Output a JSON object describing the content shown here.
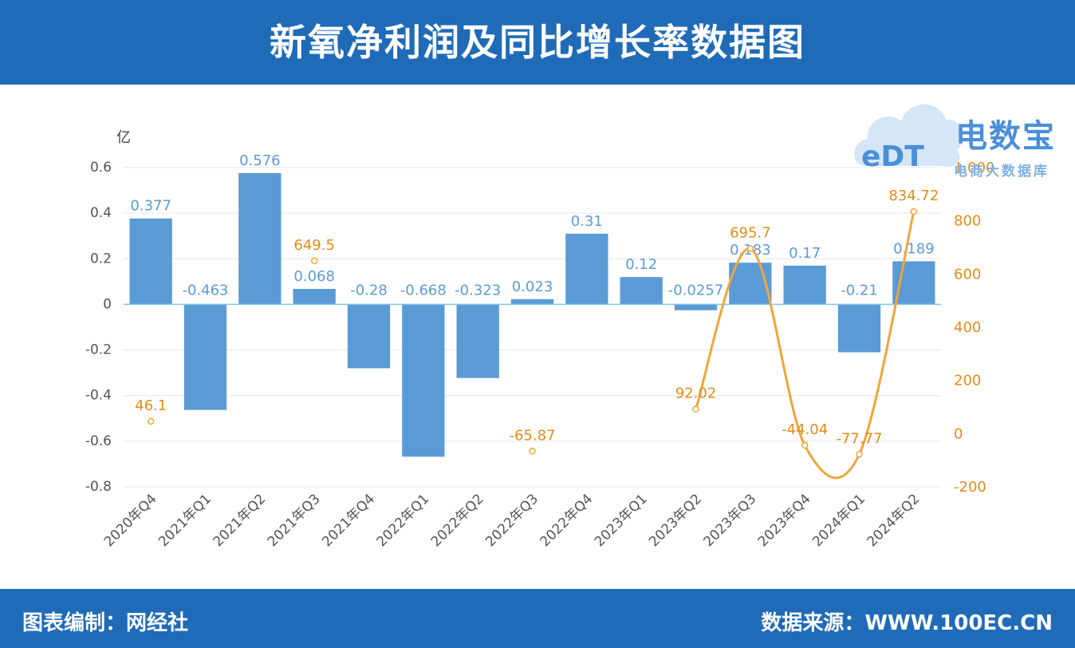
{
  "header": {
    "title": "新氧净利润及同比增长率数据图"
  },
  "footer": {
    "left": "图表编制：网经社",
    "right": "数据来源：WWW.100EC.CN"
  },
  "logo": {
    "brand": "电数宝",
    "sub": "电商大数据库",
    "mark": "eDT"
  },
  "colors": {
    "banner": "#1f6bb8",
    "bar": "#5b9bd5",
    "line": "#f0a53a",
    "label_blue": "#5b9bd5",
    "label_orange": "#e38c16"
  },
  "chart_data": {
    "type": "bar",
    "categories": [
      "2020年Q4",
      "2021年Q1",
      "2021年Q2",
      "2021年Q3",
      "2021年Q4",
      "2022年Q1",
      "2022年Q2",
      "2022年Q3",
      "2022年Q4",
      "2023年Q1",
      "2023年Q2",
      "2023年Q3",
      "2023年Q4",
      "2024年Q1",
      "2024年Q2"
    ],
    "ylabel": "亿",
    "ylim": [
      -0.8,
      0.6
    ],
    "y_ticks": [
      "0.6",
      "0.4",
      "0.2",
      "0",
      "-0.2",
      "-0.4",
      "-0.6",
      "-0.8"
    ],
    "y2lim": [
      -200,
      1000
    ],
    "y2_ticks": [
      "1,000",
      "800",
      "600",
      "400",
      "200",
      "0",
      "-200"
    ],
    "series": [
      {
        "type": "bar",
        "values": [
          0.377,
          -0.463,
          0.576,
          0.068,
          -0.28,
          -0.668,
          -0.323,
          0.023,
          0.31,
          0.12,
          -0.0257,
          0.183,
          0.17,
          -0.21,
          0.189
        ],
        "labels": [
          "0.377",
          "-0.463",
          "0.576",
          "0.068",
          "-0.28",
          "-0.668",
          "-0.323",
          "0.023",
          "0.31",
          "0.12",
          "-0.0257",
          "0.183",
          "0.17",
          "-0.21",
          "0.189"
        ]
      },
      {
        "type": "line",
        "axis": "right",
        "values": [
          46.1,
          null,
          null,
          649.5,
          null,
          null,
          null,
          -65.87,
          null,
          null,
          92.02,
          695.7,
          -44.04,
          -77.77,
          834.72
        ],
        "labels": [
          "46.1",
          null,
          null,
          "649.5",
          null,
          null,
          null,
          "-65.87",
          null,
          null,
          "92.02",
          "695.7",
          "-44.04",
          "-77.77",
          "834.72"
        ]
      }
    ],
    "grid": true
  }
}
